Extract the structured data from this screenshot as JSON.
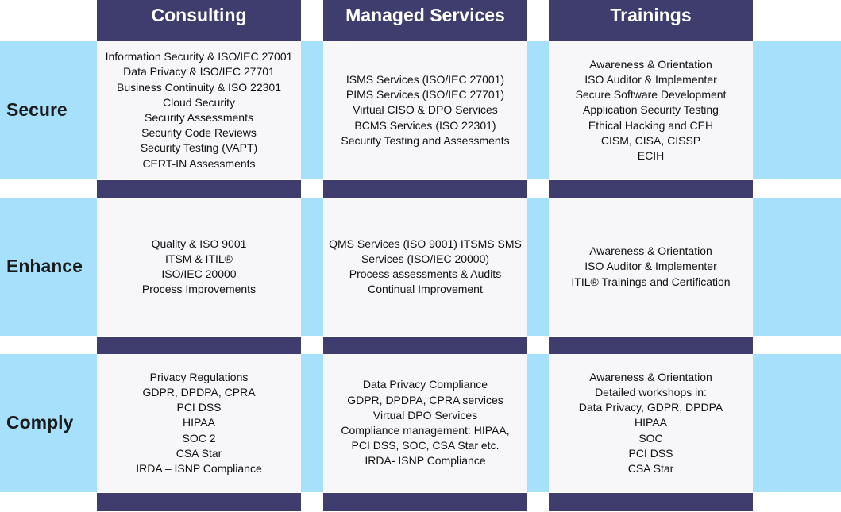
{
  "columns": [
    "Consulting",
    "Managed Services",
    "Trainings"
  ],
  "rows": [
    {
      "label": "Secure",
      "cells": [
        [
          "Information Security & ISO/IEC 27001",
          "Data Privacy & ISO/IEC 27701",
          "Business Continuity & ISO 22301",
          "Cloud Security",
          "Security Assessments",
          "Security Code Reviews",
          "Security Testing (VAPT)",
          "CERT-IN Assessments"
        ],
        [
          "ISMS Services (ISO/IEC 27001)",
          "PIMS Services (ISO/IEC 27701)",
          "Virtual CISO & DPO Services",
          "BCMS Services (ISO 22301)",
          "Security Testing and Assessments"
        ],
        [
          "Awareness & Orientation",
          "ISO Auditor & Implementer",
          "Secure Software Development",
          "Application Security Testing",
          "Ethical Hacking and CEH",
          "CISM, CISA, CISSP",
          "ECIH"
        ]
      ]
    },
    {
      "label": "Enhance",
      "cells": [
        [
          "Quality & ISO 9001",
          "ITSM & ITIL®",
          "ISO/IEC 20000",
          "Process Improvements"
        ],
        [
          "QMS Services (ISO 9001) ITSMS SMS",
          "Services (ISO/IEC 20000)",
          "Process assessments  & Audits",
          "Continual Improvement"
        ],
        [
          "Awareness & Orientation",
          "ISO Auditor & Implementer",
          "ITIL® Trainings and Certification"
        ]
      ]
    },
    {
      "label": "Comply",
      "cells": [
        [
          "Privacy Regulations",
          "GDPR, DPDPA, CPRA",
          "PCI DSS",
          "HIPAA",
          "SOC 2",
          "CSA Star",
          "IRDA – ISNP Compliance"
        ],
        [
          "Data Privacy Compliance",
          "GDPR, DPDPA, CPRA services",
          "Virtual DPO Services",
          "Compliance management: HIPAA,",
          "PCI DSS, SOC, CSA Star etc.",
          "IRDA- ISNP Compliance"
        ],
        [
          "Awareness & Orientation",
          "Detailed workshops in:",
          "Data Privacy, GDPR, DPDPA",
          "HIPAA",
          "SOC",
          "PCI DSS",
          "CSA Star"
        ]
      ]
    }
  ],
  "colors": {
    "header": "#3f3d6d",
    "band": "#a6e0fa",
    "cell": "#f7f7f9"
  }
}
